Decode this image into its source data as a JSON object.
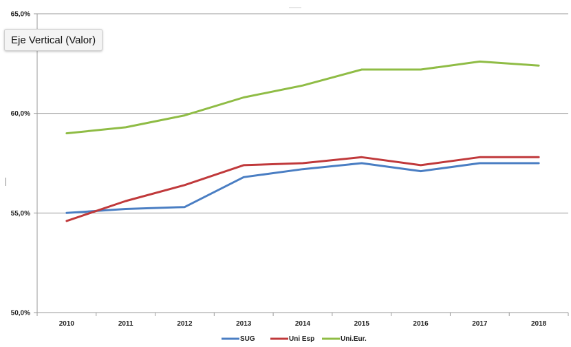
{
  "tooltip": {
    "text": "Eje Vertical (Valor)"
  },
  "chart_data": {
    "type": "line",
    "categories": [
      "2010",
      "2011",
      "2012",
      "2013",
      "2014",
      "2015",
      "2016",
      "2017",
      "2018"
    ],
    "ylim": [
      50,
      65
    ],
    "yticks": [
      50,
      55,
      60,
      65
    ],
    "ytick_labels": [
      "50,0%",
      "55,0%",
      "60,0%",
      "65,0%"
    ],
    "grid": "horizontal",
    "legend_position": "bottom",
    "series": [
      {
        "name": "SUG",
        "color": "#4a7ec3",
        "values": [
          55.0,
          55.2,
          55.3,
          56.8,
          57.2,
          57.5,
          57.1,
          57.5,
          57.5
        ]
      },
      {
        "name": "Uni Esp",
        "color": "#c0393b",
        "values": [
          54.6,
          55.6,
          56.4,
          57.4,
          57.5,
          57.8,
          57.4,
          57.8,
          57.8
        ]
      },
      {
        "name": "Uni.Eur.",
        "color": "#8fbc45",
        "values": [
          59.0,
          59.3,
          59.9,
          60.8,
          61.4,
          62.2,
          62.2,
          62.6,
          62.4
        ]
      }
    ]
  }
}
